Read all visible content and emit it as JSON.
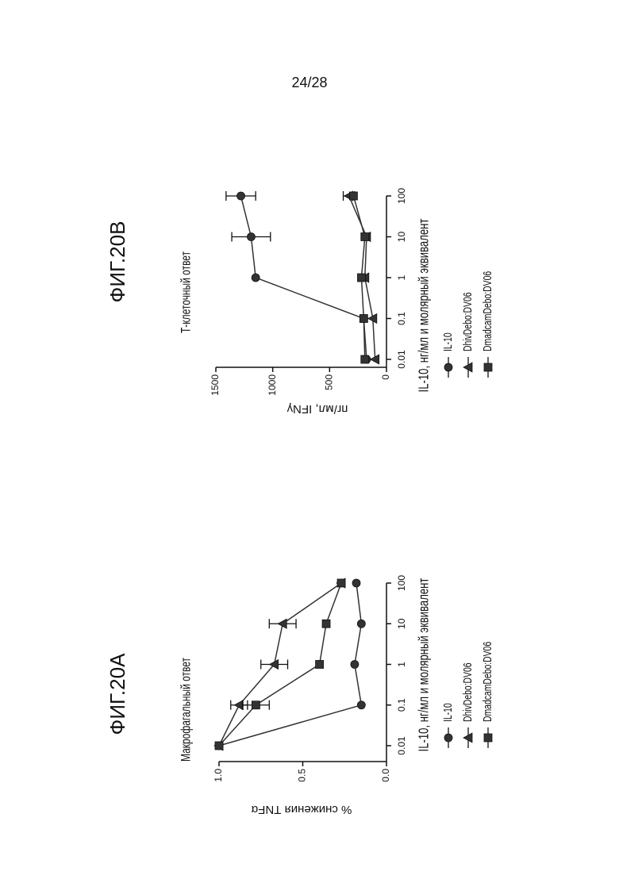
{
  "page_number": "24/28",
  "chart_data": [
    {
      "type": "line",
      "title": "ФИГ.20А",
      "subtitle": "Макрофагальный ответ",
      "x_label": "IL-10, нг/мл и молярный эквивалент",
      "y_label": "% снижения TNFα",
      "x": [
        0.01,
        0.1,
        1,
        10,
        100
      ],
      "xlim": [
        0.01,
        100
      ],
      "xticks": [
        0.01,
        0.1,
        1,
        10,
        100
      ],
      "x_log": true,
      "ylim": [
        0,
        1
      ],
      "yticks": [
        {
          "value": 0,
          "label": "0.0"
        },
        {
          "value": 0.5,
          "label": "0.5"
        },
        {
          "value": 1,
          "label": "1.0"
        }
      ],
      "series": [
        {
          "name": "IL-10",
          "color": "#333333",
          "marker": "circle",
          "values": [
            1.0,
            0.15,
            0.19,
            0.15,
            0.18
          ]
        },
        {
          "name": "DhivDebo:DV06",
          "color": "#333333",
          "marker": "triangle",
          "values": [
            1.0,
            0.88,
            0.67,
            0.62,
            0.27
          ],
          "errors": [
            null,
            0.05,
            0.08,
            0.08,
            null
          ]
        },
        {
          "name": "DmadcamDebo:DV06",
          "color": "#333333",
          "marker": "square",
          "values": [
            1.0,
            0.78,
            0.4,
            0.36,
            0.27
          ],
          "errors": [
            null,
            0.08,
            null,
            null,
            null
          ]
        }
      ]
    },
    {
      "type": "line",
      "title": "ФИГ.20В",
      "subtitle": "Т-клеточный ответ",
      "x_label": "IL-10, нг/мл и молярный эквивалент",
      "y_label": "пг/мл, IFNγ",
      "x": [
        0.01,
        0.1,
        1,
        10,
        100
      ],
      "xlim": [
        0.01,
        100
      ],
      "xticks": [
        0.01,
        0.1,
        1,
        10,
        100
      ],
      "x_log": true,
      "ylim": [
        0,
        1500
      ],
      "yticks": [
        0,
        500,
        1000,
        1500
      ],
      "series": [
        {
          "name": "IL-10",
          "color": "#333333",
          "marker": "circle",
          "values": [
            175,
            200,
            1150,
            1190,
            1280
          ],
          "errors": [
            null,
            null,
            null,
            170,
            130
          ]
        },
        {
          "name": "DhivDebo:DV06",
          "color": "#333333",
          "marker": "triangle",
          "values": [
            100,
            120,
            190,
            175,
            330
          ],
          "errors": [
            null,
            null,
            null,
            null,
            50
          ]
        },
        {
          "name": "DmadcamDebo:DV06",
          "color": "#333333",
          "marker": "square",
          "values": [
            190,
            200,
            220,
            190,
            290
          ]
        }
      ]
    }
  ]
}
